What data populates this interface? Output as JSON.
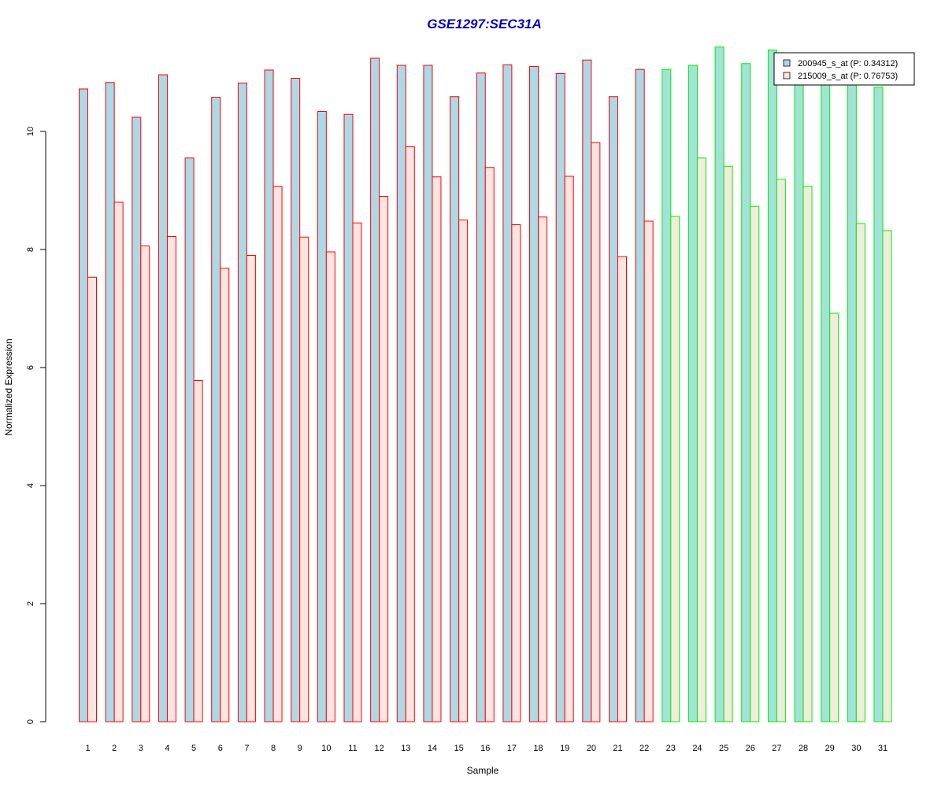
{
  "chart_data": {
    "type": "bar",
    "title": "GSE1297:SEC31A",
    "xlabel": "Sample",
    "ylabel": "Normalized Expression",
    "ylim": [
      0,
      11.6
    ],
    "yticks": [
      0,
      2,
      4,
      6,
      8,
      10
    ],
    "categories": [
      "1",
      "2",
      "3",
      "4",
      "5",
      "6",
      "7",
      "8",
      "9",
      "10",
      "11",
      "12",
      "13",
      "14",
      "15",
      "16",
      "17",
      "18",
      "19",
      "20",
      "21",
      "22",
      "23",
      "24",
      "25",
      "26",
      "27",
      "28",
      "29",
      "30",
      "31"
    ],
    "series": [
      {
        "name": "200945_s_at (P: 0.34312)",
        "values": [
          10.72,
          10.83,
          10.24,
          10.96,
          9.55,
          10.58,
          10.82,
          11.04,
          10.9,
          10.34,
          10.29,
          11.24,
          11.12,
          11.12,
          10.59,
          10.99,
          11.13,
          11.1,
          10.98,
          11.21,
          10.59,
          11.05,
          11.05,
          11.12,
          11.43,
          11.15,
          11.38,
          10.8,
          10.8,
          10.8,
          10.75
        ]
      },
      {
        "name": "215009_s_at (P: 0.76753)",
        "values": [
          7.53,
          8.8,
          8.06,
          8.22,
          5.78,
          7.68,
          7.9,
          9.07,
          8.21,
          7.96,
          8.45,
          8.9,
          9.74,
          9.23,
          8.5,
          9.39,
          8.42,
          8.55,
          9.24,
          9.81,
          7.88,
          8.48,
          8.56,
          9.55,
          9.41,
          8.73,
          9.19,
          9.07,
          6.92,
          8.44,
          8.32
        ]
      }
    ],
    "groups": [
      {
        "from": 1,
        "to": 22,
        "border": "#ff0000",
        "fill1": "#add8e6",
        "fill2": "#ffe4e1"
      },
      {
        "from": 23,
        "to": 31,
        "border": "#00ee00",
        "fill1": "#a2e2d8",
        "fill2": "#f2ecdc"
      }
    ],
    "legend_position": "top-right",
    "grid": false
  }
}
